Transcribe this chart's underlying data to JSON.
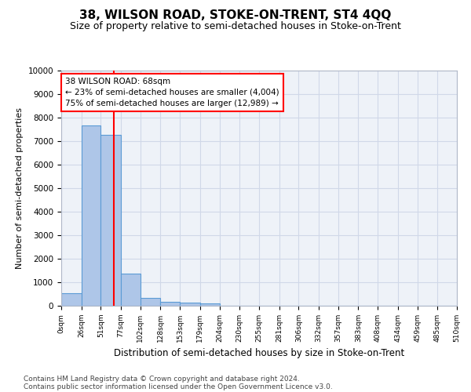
{
  "title": "38, WILSON ROAD, STOKE-ON-TRENT, ST4 4QQ",
  "subtitle": "Size of property relative to semi-detached houses in Stoke-on-Trent",
  "xlabel": "Distribution of semi-detached houses by size in Stoke-on-Trent",
  "ylabel": "Number of semi-detached properties",
  "footnote1": "Contains HM Land Registry data © Crown copyright and database right 2024.",
  "footnote2": "Contains public sector information licensed under the Open Government Licence v3.0.",
  "bar_edges": [
    0,
    26,
    51,
    77,
    102,
    128,
    153,
    179,
    204,
    230,
    255,
    281,
    306,
    332,
    357,
    383,
    408,
    434,
    459,
    485,
    510
  ],
  "bar_heights": [
    530,
    7650,
    7280,
    1380,
    330,
    160,
    120,
    95,
    0,
    0,
    0,
    0,
    0,
    0,
    0,
    0,
    0,
    0,
    0,
    0
  ],
  "bar_color": "#aec6e8",
  "bar_edge_color": "#5b9bd5",
  "property_size": 68,
  "red_line_color": "#ff0000",
  "annotation_line1": "38 WILSON ROAD: 68sqm",
  "annotation_line2": "← 23% of semi-detached houses are smaller (4,004)",
  "annotation_line3": "75% of semi-detached houses are larger (12,989) →",
  "annotation_box_color": "#ffffff",
  "annotation_box_edgecolor": "#ff0000",
  "ylim": [
    0,
    10000
  ],
  "yticks": [
    0,
    1000,
    2000,
    3000,
    4000,
    5000,
    6000,
    7000,
    8000,
    9000,
    10000
  ],
  "tick_labels": [
    "0sqm",
    "26sqm",
    "51sqm",
    "77sqm",
    "102sqm",
    "128sqm",
    "153sqm",
    "179sqm",
    "204sqm",
    "230sqm",
    "255sqm",
    "281sqm",
    "306sqm",
    "332sqm",
    "357sqm",
    "383sqm",
    "408sqm",
    "434sqm",
    "459sqm",
    "485sqm",
    "510sqm"
  ],
  "grid_color": "#d0d8e8",
  "bg_color": "#eef2f8",
  "title_fontsize": 11,
  "subtitle_fontsize": 9
}
